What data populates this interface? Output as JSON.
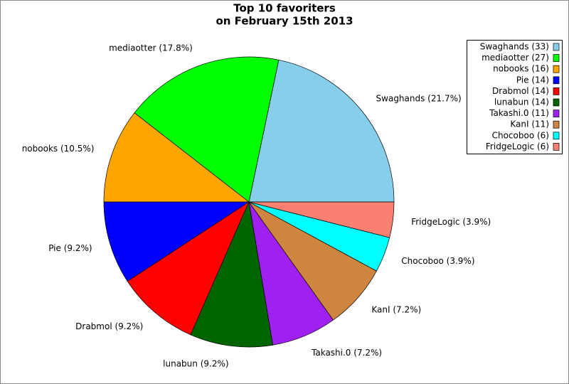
{
  "chart_data": {
    "type": "pie",
    "title": [
      "Top 10 favoriters",
      "on February 15th 2013"
    ],
    "categories": [
      "Swaghands (33)",
      "mediaotter (27)",
      "nobooks (16)",
      "Pie (14)",
      "Drabmol (14)",
      "lunabun (14)",
      "Takashi.0 (11)",
      "KanI (11)",
      "Chocoboo (6)",
      "FridgeLogic (6)"
    ],
    "values": [
      33,
      27,
      16,
      14,
      14,
      14,
      11,
      11,
      6,
      6
    ],
    "value_labels": [
      "Swaghands (21.7%)",
      "mediaotter (17.8%)",
      "nobooks (10.5%)",
      "Pie (9.2%)",
      "Drabmol (9.2%)",
      "lunabun (9.2%)",
      "Takashi.0 (7.2%)",
      "KanI (7.2%)",
      "Chocoboo (3.9%)",
      "FridgeLogic (3.9%)"
    ],
    "colors": [
      "#87ceeb",
      "#00ff00",
      "#ffa500",
      "#0000ff",
      "#ff0000",
      "#006400",
      "#a020f0",
      "#cd853f",
      "#00ffff",
      "#fa8072"
    ],
    "legend_position": "upper right"
  }
}
